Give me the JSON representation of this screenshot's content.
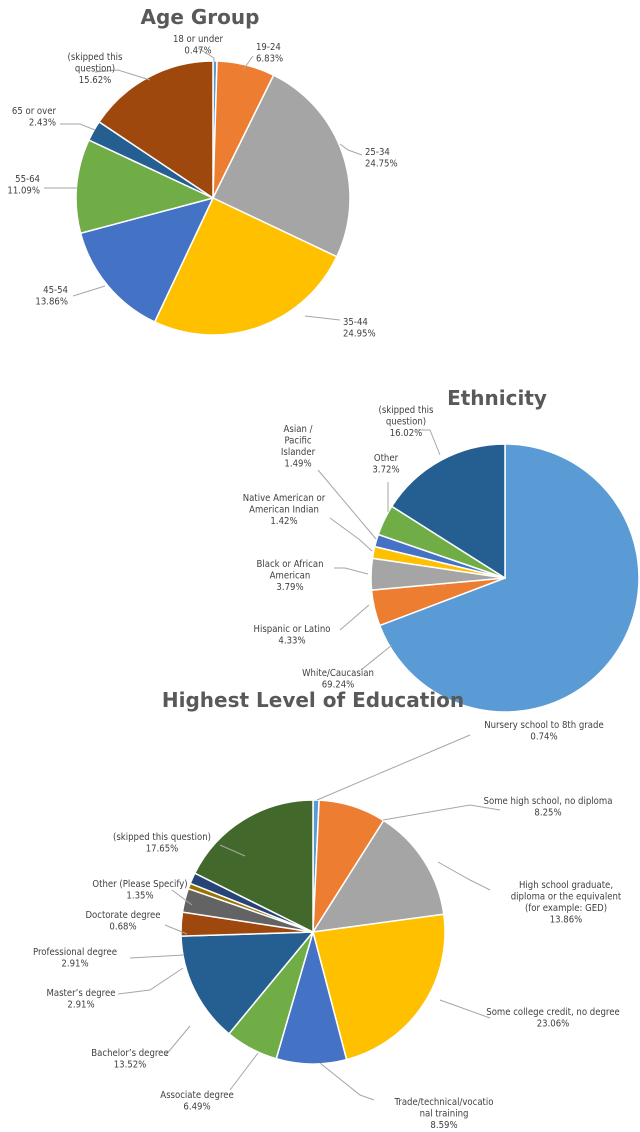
{
  "chart_data": [
    {
      "type": "pie",
      "title": "Age Group",
      "colors": [
        "#5b9bd5",
        "#ed7d31",
        "#a5a5a5",
        "#ffc000",
        "#4472c4",
        "#70ad47",
        "#255e91",
        "#9e480e"
      ],
      "slices": [
        {
          "label": [
            "18 or under",
            "0.47%"
          ],
          "value": 0.47
        },
        {
          "label": [
            "19-24",
            "6.83%"
          ],
          "value": 6.83
        },
        {
          "label": [
            "25-34",
            "24.75%"
          ],
          "value": 24.75
        },
        {
          "label": [
            "35-44",
            "24.95%"
          ],
          "value": 24.95
        },
        {
          "label": [
            "45-54",
            "13.86%"
          ],
          "value": 13.86
        },
        {
          "label": [
            "55-64",
            "11.09%"
          ],
          "value": 11.09
        },
        {
          "label": [
            "65 or over",
            "2.43%"
          ],
          "value": 2.43
        },
        {
          "label": [
            "(skipped this",
            "question)",
            "15.62%"
          ],
          "value": 15.62
        }
      ]
    },
    {
      "type": "pie",
      "title": "Ethnicity",
      "colors": [
        "#5b9bd5",
        "#ed7d31",
        "#a5a5a5",
        "#ffc000",
        "#4472c4",
        "#70ad47",
        "#255e91"
      ],
      "slices": [
        {
          "label": [
            "White/Caucasian",
            "69.24%"
          ],
          "value": 69.24
        },
        {
          "label": [
            "Hispanic or Latino",
            "4.33%"
          ],
          "value": 4.33
        },
        {
          "label": [
            "Black or African",
            "American",
            "3.79%"
          ],
          "value": 3.79
        },
        {
          "label": [
            "Native American or",
            "American Indian",
            "1.42%"
          ],
          "value": 1.42
        },
        {
          "label": [
            "Asian /",
            "Pacific",
            "Islander",
            "1.49%"
          ],
          "value": 1.49
        },
        {
          "label": [
            "Other",
            "3.72%"
          ],
          "value": 3.72
        },
        {
          "label": [
            "(skipped this",
            "question)",
            "16.02%"
          ],
          "value": 16.02
        }
      ]
    },
    {
      "type": "pie",
      "title": "Highest Level of Education",
      "colors": [
        "#5b9bd5",
        "#ed7d31",
        "#a5a5a5",
        "#ffc000",
        "#4472c4",
        "#70ad47",
        "#255e91",
        "#9e480e",
        "#636363",
        "#997300",
        "#264478",
        "#43682b"
      ],
      "slices": [
        {
          "label": [
            "Nursery school to 8th grade",
            "0.74%"
          ],
          "value": 0.74
        },
        {
          "label": [
            "Some high school, no diploma",
            "8.25%"
          ],
          "value": 8.25
        },
        {
          "label": [
            "High school graduate,",
            "diploma or the equivalent",
            "(for example: GED)",
            "13.86%"
          ],
          "value": 13.86
        },
        {
          "label": [
            "Some college credit, no degree",
            "23.06%"
          ],
          "value": 23.06
        },
        {
          "label": [
            "Trade/technical/vocatio",
            "nal training",
            "8.59%"
          ],
          "value": 8.59
        },
        {
          "label": [
            "Associate degree",
            "6.49%"
          ],
          "value": 6.49
        },
        {
          "label": [
            "Bachelor’s degree",
            "13.52%"
          ],
          "value": 13.52
        },
        {
          "label": [
            "Master’s degree",
            "2.91%"
          ],
          "value": 2.91
        },
        {
          "label": [
            "Professional degree",
            "2.91%"
          ],
          "value": 2.91
        },
        {
          "label": [
            "Doctorate degree",
            "0.68%"
          ],
          "value": 0.68
        },
        {
          "label": [
            "Other (Please Specify)",
            "1.35%"
          ],
          "value": 1.35
        },
        {
          "label": [
            "(skipped this question)",
            "17.65%"
          ],
          "value": 17.65
        }
      ]
    }
  ]
}
